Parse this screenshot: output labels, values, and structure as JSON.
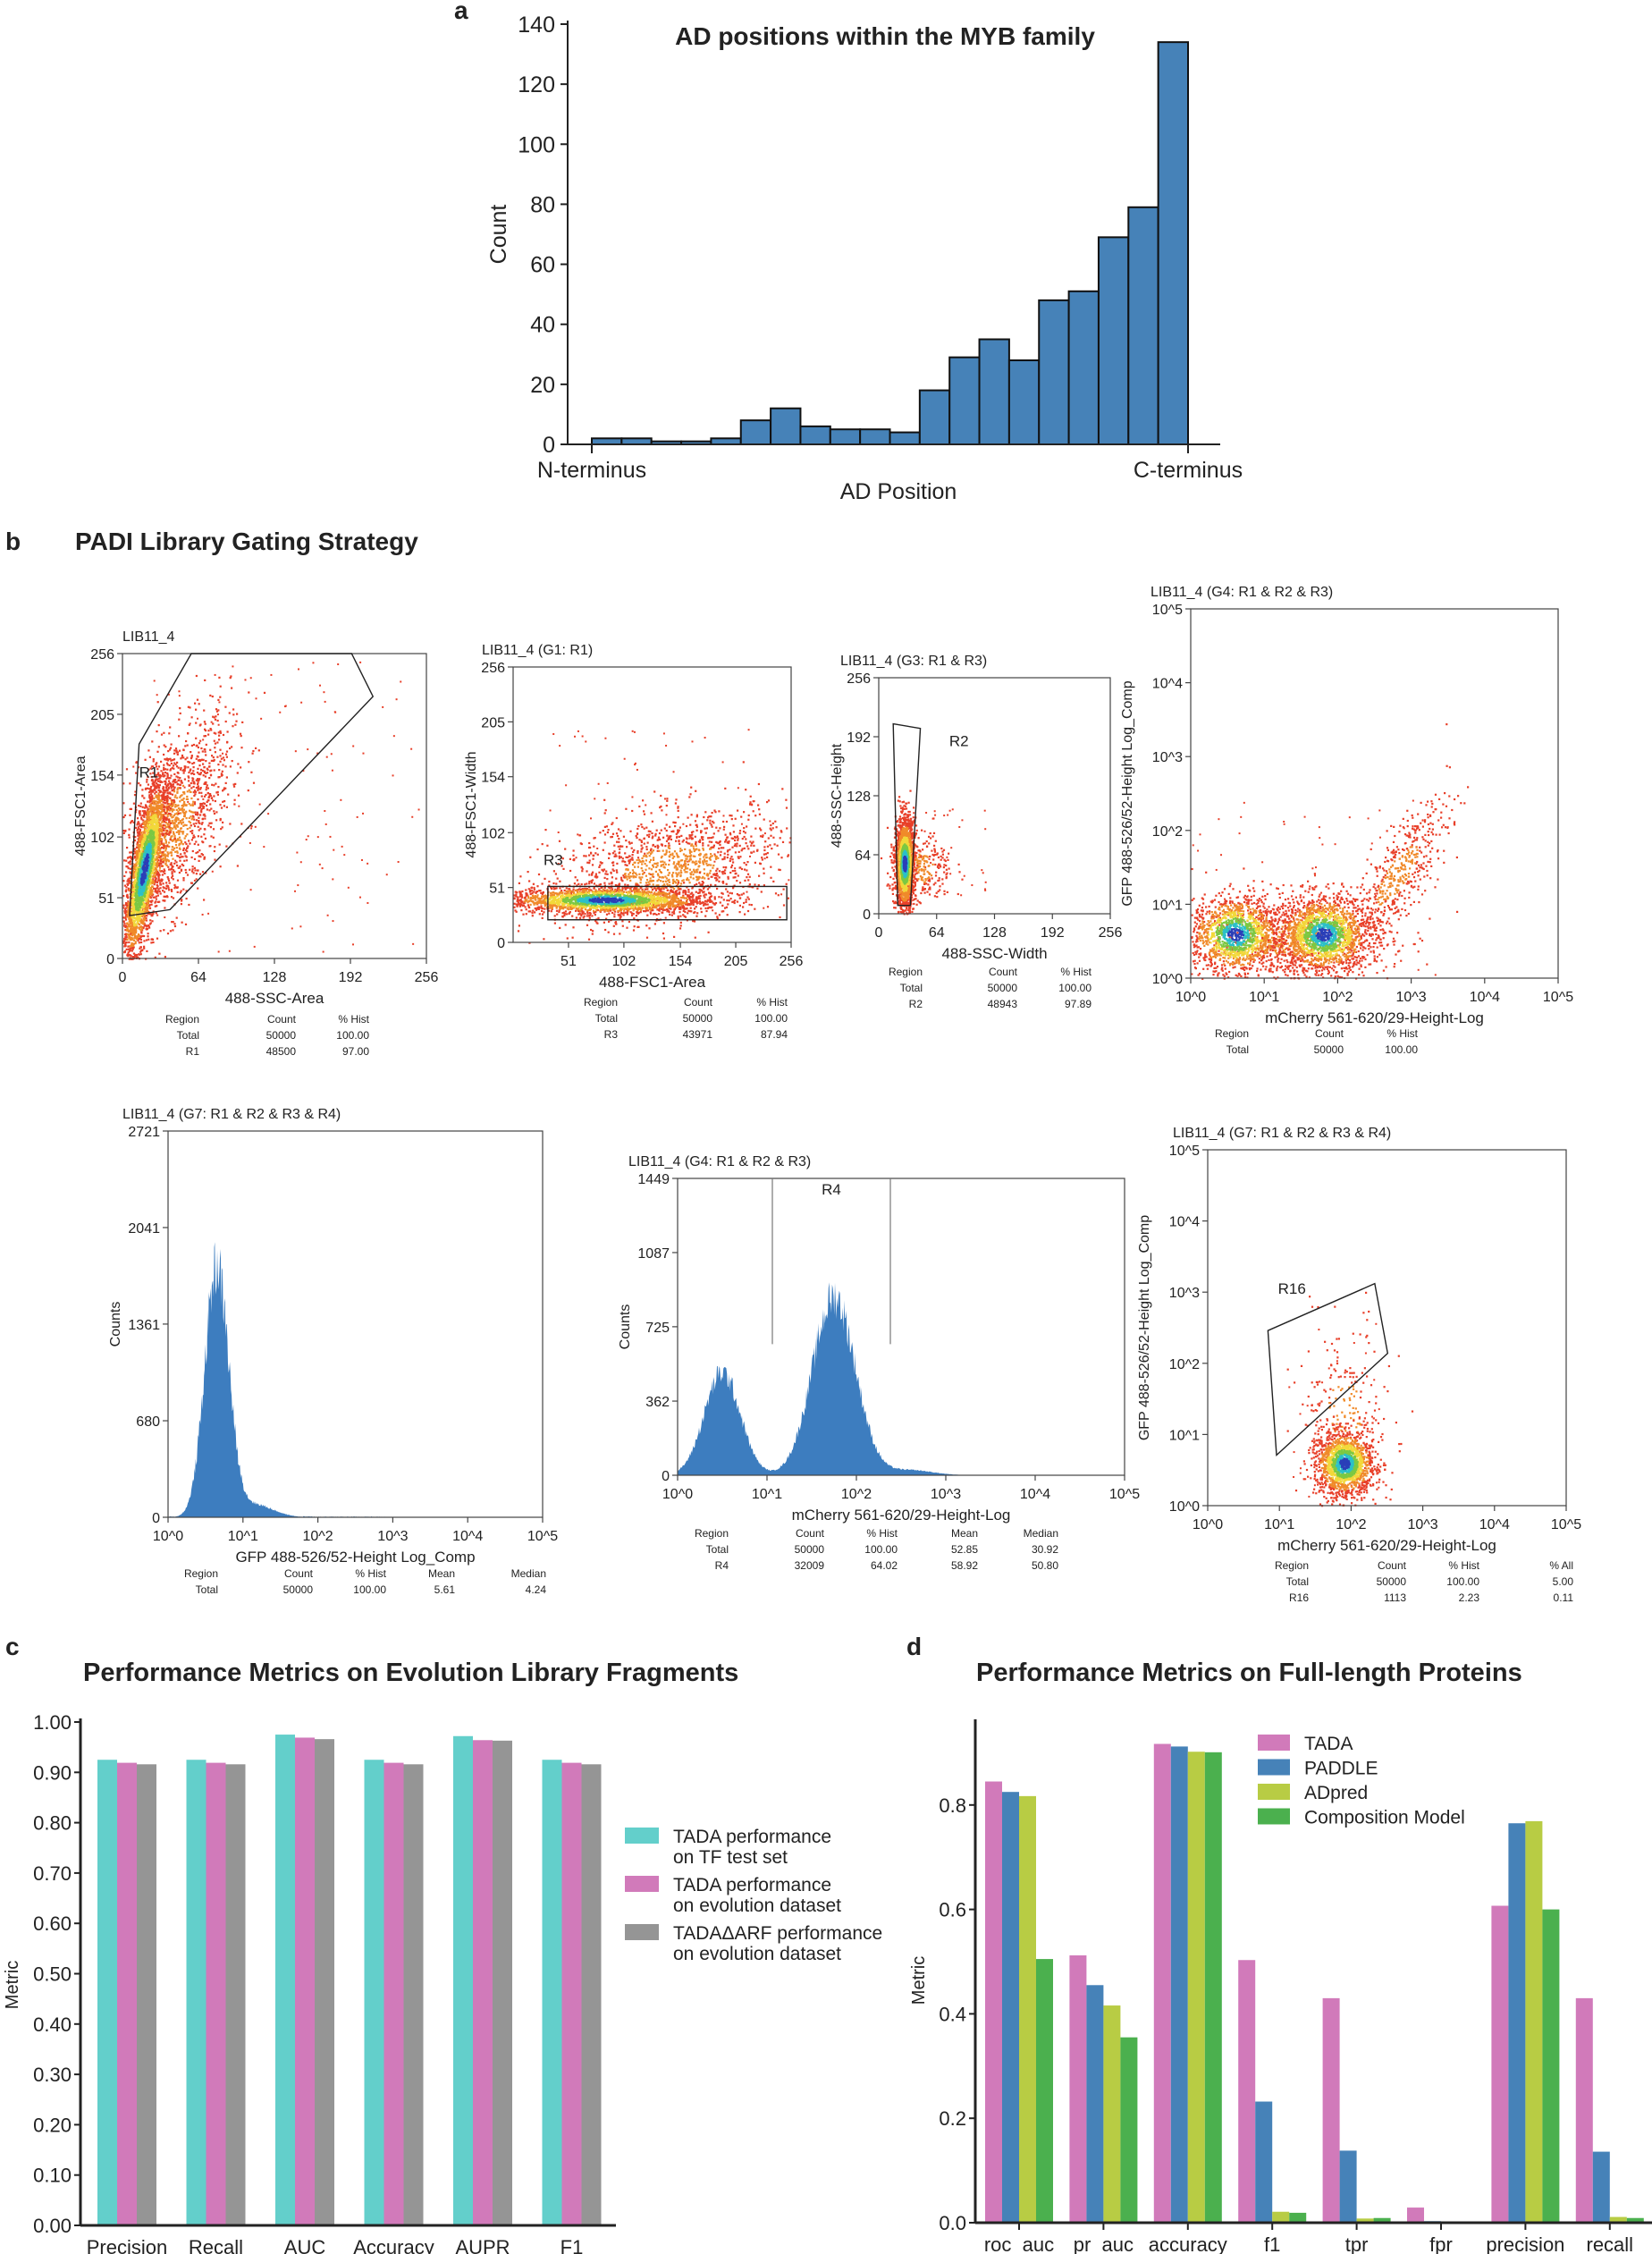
{
  "panel_letters": {
    "a": "a",
    "b": "b",
    "c": "c",
    "d": "d"
  },
  "panel_b": {
    "title": "PADI Library Gating Strategy",
    "plots": [
      {
        "title": "LIB11_4",
        "xlabel": "488-SSC-Area",
        "ylabel": "488-FSC1-Area",
        "xticks": [
          "0",
          "64",
          "128",
          "192",
          "256"
        ],
        "yticks": [
          "0",
          "51",
          "102",
          "154",
          "205",
          "256"
        ],
        "gates": [
          {
            "label": "R1"
          }
        ],
        "table": {
          "headers": [
            "Region",
            "Count",
            "% Hist"
          ],
          "rows": [
            [
              "Total",
              "50000",
              "100.00"
            ],
            [
              "R1",
              "48500",
              "97.00"
            ]
          ]
        }
      },
      {
        "title": "LIB11_4  (G1: R1)",
        "xlabel": "488-FSC1-Area",
        "ylabel": "488-FSC1-Width",
        "xticks": [
          "51",
          "102",
          "154",
          "205",
          "256"
        ],
        "yticks": [
          "0",
          "51",
          "102",
          "154",
          "205",
          "256"
        ],
        "gates": [
          {
            "label": "R3"
          }
        ],
        "table": {
          "headers": [
            "Region",
            "Count",
            "% Hist"
          ],
          "rows": [
            [
              "Total",
              "50000",
              "100.00"
            ],
            [
              "R3",
              "43971",
              "87.94"
            ]
          ]
        }
      },
      {
        "title": "LIB11_4  (G3: R1 & R3)",
        "xlabel": "488-SSC-Width",
        "ylabel": "488-SSC-Height",
        "xticks": [
          "0",
          "64",
          "128",
          "192",
          "256"
        ],
        "yticks": [
          "0",
          "64",
          "128",
          "192",
          "256"
        ],
        "gates": [
          {
            "label": "R2"
          }
        ],
        "table": {
          "headers": [
            "Region",
            "Count",
            "% Hist"
          ],
          "rows": [
            [
              "Total",
              "50000",
              "100.00"
            ],
            [
              "R2",
              "48943",
              "97.89"
            ]
          ]
        }
      },
      {
        "title": "LIB11_4  (G4: R1 & R2 & R3)",
        "xlabel": "mCherry 561-620/29-Height-Log",
        "ylabel": "GFP 488-526/52-Height Log_Comp",
        "xticks": [
          "10^0",
          "10^1",
          "10^2",
          "10^3",
          "10^4",
          "10^5"
        ],
        "yticks": [
          "10^0",
          "10^1",
          "10^2",
          "10^3",
          "10^4",
          "10^5"
        ],
        "gates": [],
        "table": {
          "headers": [
            "Region",
            "Count",
            "% Hist"
          ],
          "rows": [
            [
              "Total",
              "50000",
              "100.00"
            ]
          ]
        }
      },
      {
        "title": "LIB11_4  (G7: R1 & R2 & R3 & R4)",
        "xlabel": "GFP 488-526/52-Height Log_Comp",
        "ylabel": "Counts",
        "xticks": [
          "10^0",
          "10^1",
          "10^2",
          "10^3",
          "10^4",
          "10^5"
        ],
        "yticks": [
          "0",
          "680",
          "1361",
          "2041",
          "2721"
        ],
        "gates": [],
        "table": {
          "headers": [
            "Region",
            "Count",
            "% Hist",
            "Mean",
            "Median"
          ],
          "rows": [
            [
              "Total",
              "50000",
              "100.00",
              "5.61",
              "4.24"
            ]
          ]
        }
      },
      {
        "title": "LIB11_4  (G4: R1 & R2 & R3)",
        "xlabel": "mCherry 561-620/29-Height-Log",
        "ylabel": "Counts",
        "xticks": [
          "10^0",
          "10^1",
          "10^2",
          "10^3",
          "10^4",
          "10^5"
        ],
        "yticks": [
          "0",
          "362",
          "725",
          "1087",
          "1449"
        ],
        "gates": [
          {
            "label": "R4"
          }
        ],
        "table": {
          "headers": [
            "Region",
            "Count",
            "% Hist",
            "Mean",
            "Median"
          ],
          "rows": [
            [
              "Total",
              "50000",
              "100.00",
              "52.85",
              "30.92"
            ],
            [
              "R4",
              "32009",
              "64.02",
              "58.92",
              "50.80"
            ]
          ]
        }
      },
      {
        "title": "LIB11_4  (G7: R1 & R2 & R3 & R4)",
        "xlabel": "mCherry 561-620/29-Height-Log",
        "ylabel": "GFP 488-526/52-Height Log_Comp",
        "xticks": [
          "10^0",
          "10^1",
          "10^2",
          "10^3",
          "10^4",
          "10^5"
        ],
        "yticks": [
          "10^0",
          "10^1",
          "10^2",
          "10^3",
          "10^4",
          "10^5"
        ],
        "gates": [
          {
            "label": "R16"
          }
        ],
        "table": {
          "headers": [
            "Region",
            "Count",
            "% Hist",
            "% All"
          ],
          "rows": [
            [
              "Total",
              "50000",
              "100.00",
              "5.00"
            ],
            [
              "R16",
              "1113",
              "2.23",
              "0.11"
            ]
          ]
        }
      }
    ],
    "colors": {
      "histogram": "#3d7dbf",
      "density": [
        "#e8402a",
        "#f08a2a",
        "#f2d83a",
        "#7cc843",
        "#2cc0c8",
        "#2a3fb8"
      ]
    }
  },
  "chart_data": [
    {
      "type": "bar",
      "title": "AD positions within the MYB family",
      "xlabel": "AD Position",
      "ylabel": "Count",
      "x_tick_labels": [
        "N-terminus",
        "C-terminus"
      ],
      "values": [
        2,
        2,
        1,
        1,
        2,
        8,
        12,
        6,
        5,
        5,
        4,
        18,
        29,
        35,
        28,
        48,
        51,
        69,
        79,
        134
      ],
      "ylim": [
        0,
        140
      ],
      "yticks": [
        "0",
        "20",
        "40",
        "60",
        "80",
        "100",
        "120",
        "140"
      ],
      "color": "#4682b8",
      "grid": false
    },
    {
      "type": "bar",
      "title": "Performance Metrics on Evolution Library Fragments",
      "xlabel": "",
      "ylabel": "Metric",
      "categories": [
        "Precision",
        "Recall",
        "AUC",
        "Accuracy",
        "AUPR",
        "F1"
      ],
      "series": [
        {
          "name": "TADA performance\non TF test set",
          "color": "#63cfcb",
          "values": [
            0.925,
            0.925,
            0.975,
            0.925,
            0.972,
            0.925
          ]
        },
        {
          "name": "TADA performance\non evolution dataset",
          "color": "#d17aba",
          "values": [
            0.919,
            0.919,
            0.969,
            0.919,
            0.964,
            0.919
          ]
        },
        {
          "name": "TADAΔARF performance\non evolution dataset",
          "color": "#959595",
          "values": [
            0.916,
            0.916,
            0.966,
            0.916,
            0.963,
            0.916
          ]
        }
      ],
      "ylim": [
        0,
        1
      ],
      "yticks": [
        "0.00",
        "0.10",
        "0.20",
        "0.30",
        "0.40",
        "0.50",
        "0.60",
        "0.70",
        "0.80",
        "0.90",
        "1.00"
      ],
      "legend": "right",
      "grid": false
    },
    {
      "type": "bar",
      "title": "Performance Metrics on Full-length Proteins",
      "xlabel": "",
      "ylabel": "Metric",
      "categories": [
        "roc_auc",
        "pr_auc",
        "accuracy",
        "f1",
        "tpr",
        "fpr",
        "precision",
        "recall"
      ],
      "series": [
        {
          "name": "TADA",
          "color": "#d17aba",
          "values": [
            0.845,
            0.512,
            0.917,
            0.503,
            0.43,
            0.029,
            0.607,
            0.43
          ]
        },
        {
          "name": "PADDLE",
          "color": "#4682b8",
          "values": [
            0.825,
            0.455,
            0.912,
            0.232,
            0.138,
            0.003,
            0.765,
            0.136
          ]
        },
        {
          "name": "ADpred",
          "color": "#b8cc44",
          "values": [
            0.817,
            0.416,
            0.902,
            0.021,
            0.008,
            0.0,
            0.769,
            0.011
          ]
        },
        {
          "name": "Composition Model",
          "color": "#4bb04e",
          "values": [
            0.505,
            0.355,
            0.901,
            0.019,
            0.009,
            0.0,
            0.6,
            0.009
          ]
        }
      ],
      "ylim": [
        0,
        0.965
      ],
      "yticks": [
        "0.0",
        "0.2",
        "0.4",
        "0.6",
        "0.8"
      ],
      "legend": "top-center",
      "grid": false
    }
  ]
}
